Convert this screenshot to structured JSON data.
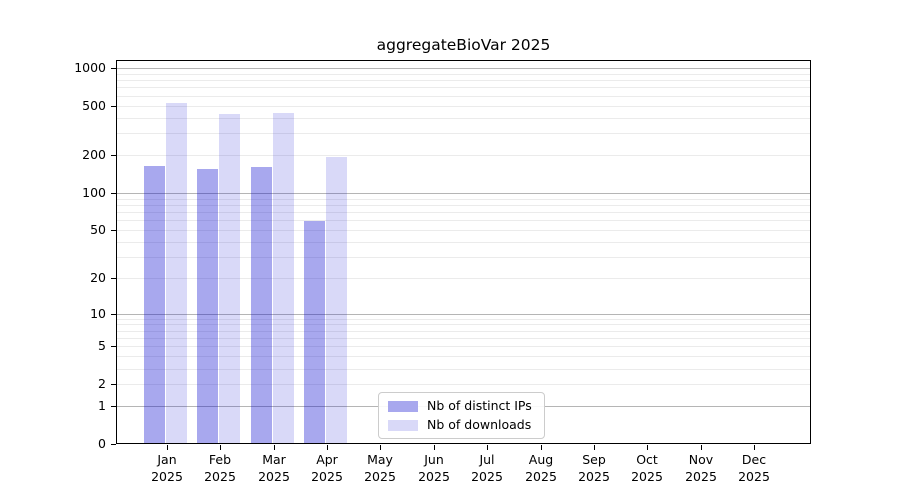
{
  "chart_data": {
    "type": "bar",
    "title": "aggregateBioVar 2025",
    "year_label": "2025",
    "categories": [
      "Jan",
      "Feb",
      "Mar",
      "Apr",
      "May",
      "Jun",
      "Jul",
      "Aug",
      "Sep",
      "Oct",
      "Nov",
      "Dec"
    ],
    "series": [
      {
        "name": "Nb of distinct IPs",
        "swatch_color": "#a8a8ee",
        "fill_color": "rgba(0,0,205,0.34)",
        "values": [
          165,
          156,
          160,
          59,
          0,
          0,
          0,
          0,
          0,
          0,
          0,
          0
        ]
      },
      {
        "name": "Nb of downloads",
        "swatch_color": "#d9d9f8",
        "fill_color": "rgba(0,0,205,0.15)",
        "values": [
          530,
          432,
          438,
          195,
          0,
          0,
          0,
          0,
          0,
          0,
          0,
          0
        ]
      }
    ],
    "y_axis": {
      "scale": "log10(1+v)",
      "ticks": [
        0,
        1,
        2,
        5,
        10,
        20,
        50,
        100,
        200,
        500,
        1000
      ],
      "major_gridlines": [
        1,
        10,
        100,
        1000
      ],
      "minor_gridlines": [
        2,
        3,
        4,
        5,
        6,
        7,
        8,
        9,
        20,
        30,
        40,
        50,
        60,
        70,
        80,
        90,
        200,
        300,
        400,
        500,
        600,
        700,
        800,
        900
      ],
      "range": [
        0,
        1000
      ],
      "grid": true
    },
    "legend": {
      "position": "bottom-center"
    }
  }
}
